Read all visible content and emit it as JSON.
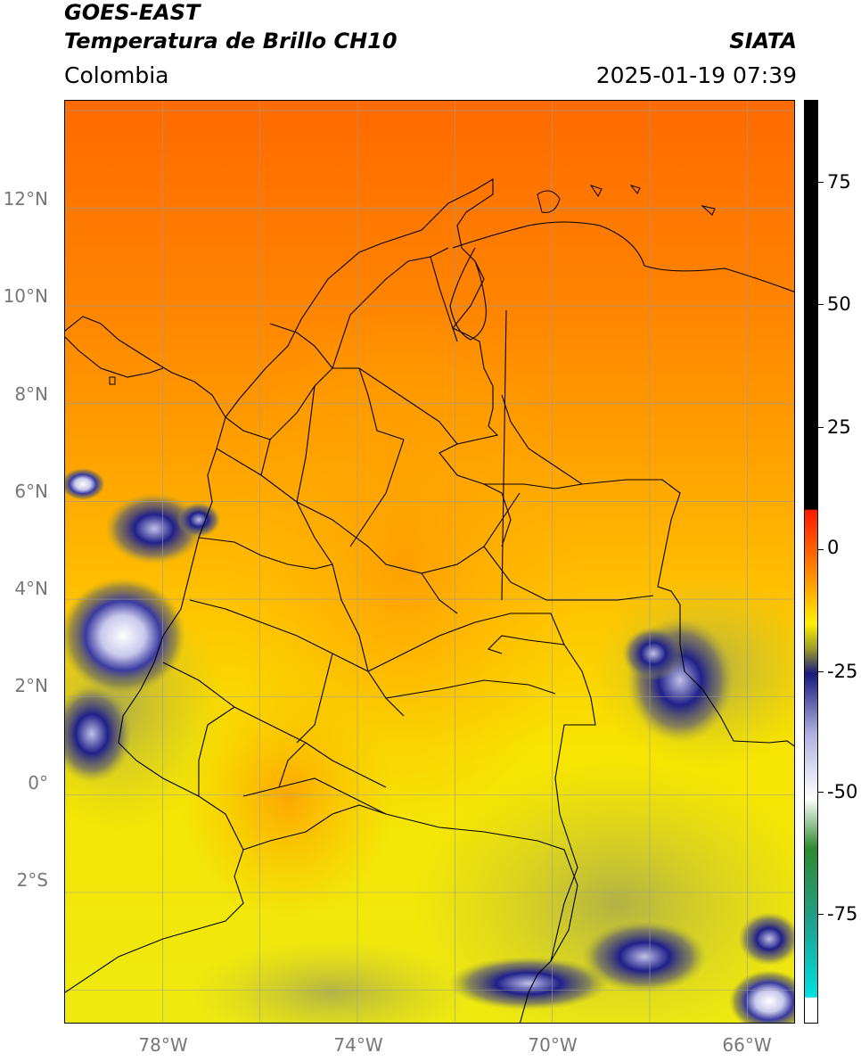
{
  "header": {
    "satellite": "GOES-EAST",
    "product": "Temperatura de Brillo CH10",
    "source": "SIATA",
    "region": "Colombia",
    "timestamp": "2025-01-19 07:39"
  },
  "map": {
    "lon_range": [
      -80,
      -65
    ],
    "lat_range": [
      -4.7,
      14.2
    ],
    "lat_labels": [
      "12°N",
      "10°N",
      "8°N",
      "6°N",
      "4°N",
      "2°N",
      "0°",
      "2°S"
    ],
    "lon_labels": [
      "78°W",
      "74°W",
      "70°W",
      "66°W"
    ],
    "colors": {
      "warm_orange": "#ff6a00",
      "mid_orange": "#ff9a00",
      "yellow": "#f5e600",
      "olive": "#b8b830",
      "navy": "#1a1a80",
      "white": "#f2f2f8",
      "border": "#000000",
      "grid": "#9a9a9a"
    }
  },
  "colorbar": {
    "labels": [
      "75",
      "50",
      "25",
      "0",
      "-25",
      "-50",
      "-75"
    ],
    "stops": [
      {
        "value": 90,
        "color": "#000000"
      },
      {
        "value": 8,
        "color": "#000000"
      },
      {
        "value": 7.9,
        "color": "#ff1a00"
      },
      {
        "value": -5,
        "color": "#ff8c00"
      },
      {
        "value": -15,
        "color": "#fff000"
      },
      {
        "value": -20,
        "color": "#9a9a2a"
      },
      {
        "value": -25,
        "color": "#1a1a80"
      },
      {
        "value": -37,
        "color": "#b0b0e0"
      },
      {
        "value": -50,
        "color": "#ffffff"
      },
      {
        "value": -60,
        "color": "#2f8a2f"
      },
      {
        "value": -75,
        "color": "#20a090"
      },
      {
        "value": -89.9,
        "color": "#00e0e0"
      },
      {
        "value": -90,
        "color": "#ffffff"
      },
      {
        "value": -95,
        "color": "#ffffff"
      }
    ],
    "range": [
      -95,
      90
    ]
  }
}
